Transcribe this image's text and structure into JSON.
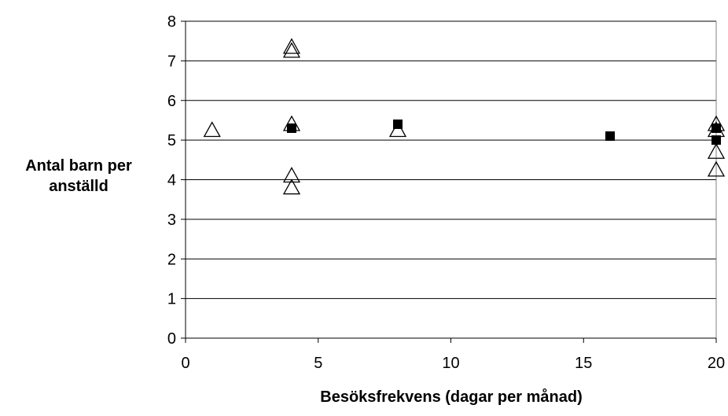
{
  "chart_data": {
    "type": "scatter",
    "title": "",
    "xlabel": "Besöksfrekvens (dagar per månad)",
    "ylabel_lines": [
      "Antal barn per",
      "anställd"
    ],
    "xlim": [
      0,
      20
    ],
    "ylim": [
      0,
      8
    ],
    "x_ticks": [
      0,
      5,
      10,
      15,
      20
    ],
    "y_ticks": [
      0,
      1,
      2,
      3,
      4,
      5,
      6,
      7,
      8
    ],
    "grid": "horizontal",
    "series": [
      {
        "marker": "open-triangle",
        "color": "#000000",
        "points": [
          {
            "x": 1,
            "y": 5.25
          },
          {
            "x": 4,
            "y": 7.35
          },
          {
            "x": 4,
            "y": 7.25
          },
          {
            "x": 4,
            "y": 5.4
          },
          {
            "x": 4,
            "y": 4.1
          },
          {
            "x": 4,
            "y": 3.8
          },
          {
            "x": 8,
            "y": 5.25
          },
          {
            "x": 20,
            "y": 5.4
          },
          {
            "x": 20,
            "y": 5.25
          },
          {
            "x": 20,
            "y": 4.7
          },
          {
            "x": 20,
            "y": 4.25
          }
        ]
      },
      {
        "marker": "filled-square",
        "color": "#000000",
        "points": [
          {
            "x": 4,
            "y": 5.3
          },
          {
            "x": 8,
            "y": 5.4
          },
          {
            "x": 16,
            "y": 5.1
          },
          {
            "x": 20,
            "y": 5.3
          },
          {
            "x": 20,
            "y": 5.0
          }
        ]
      }
    ]
  }
}
